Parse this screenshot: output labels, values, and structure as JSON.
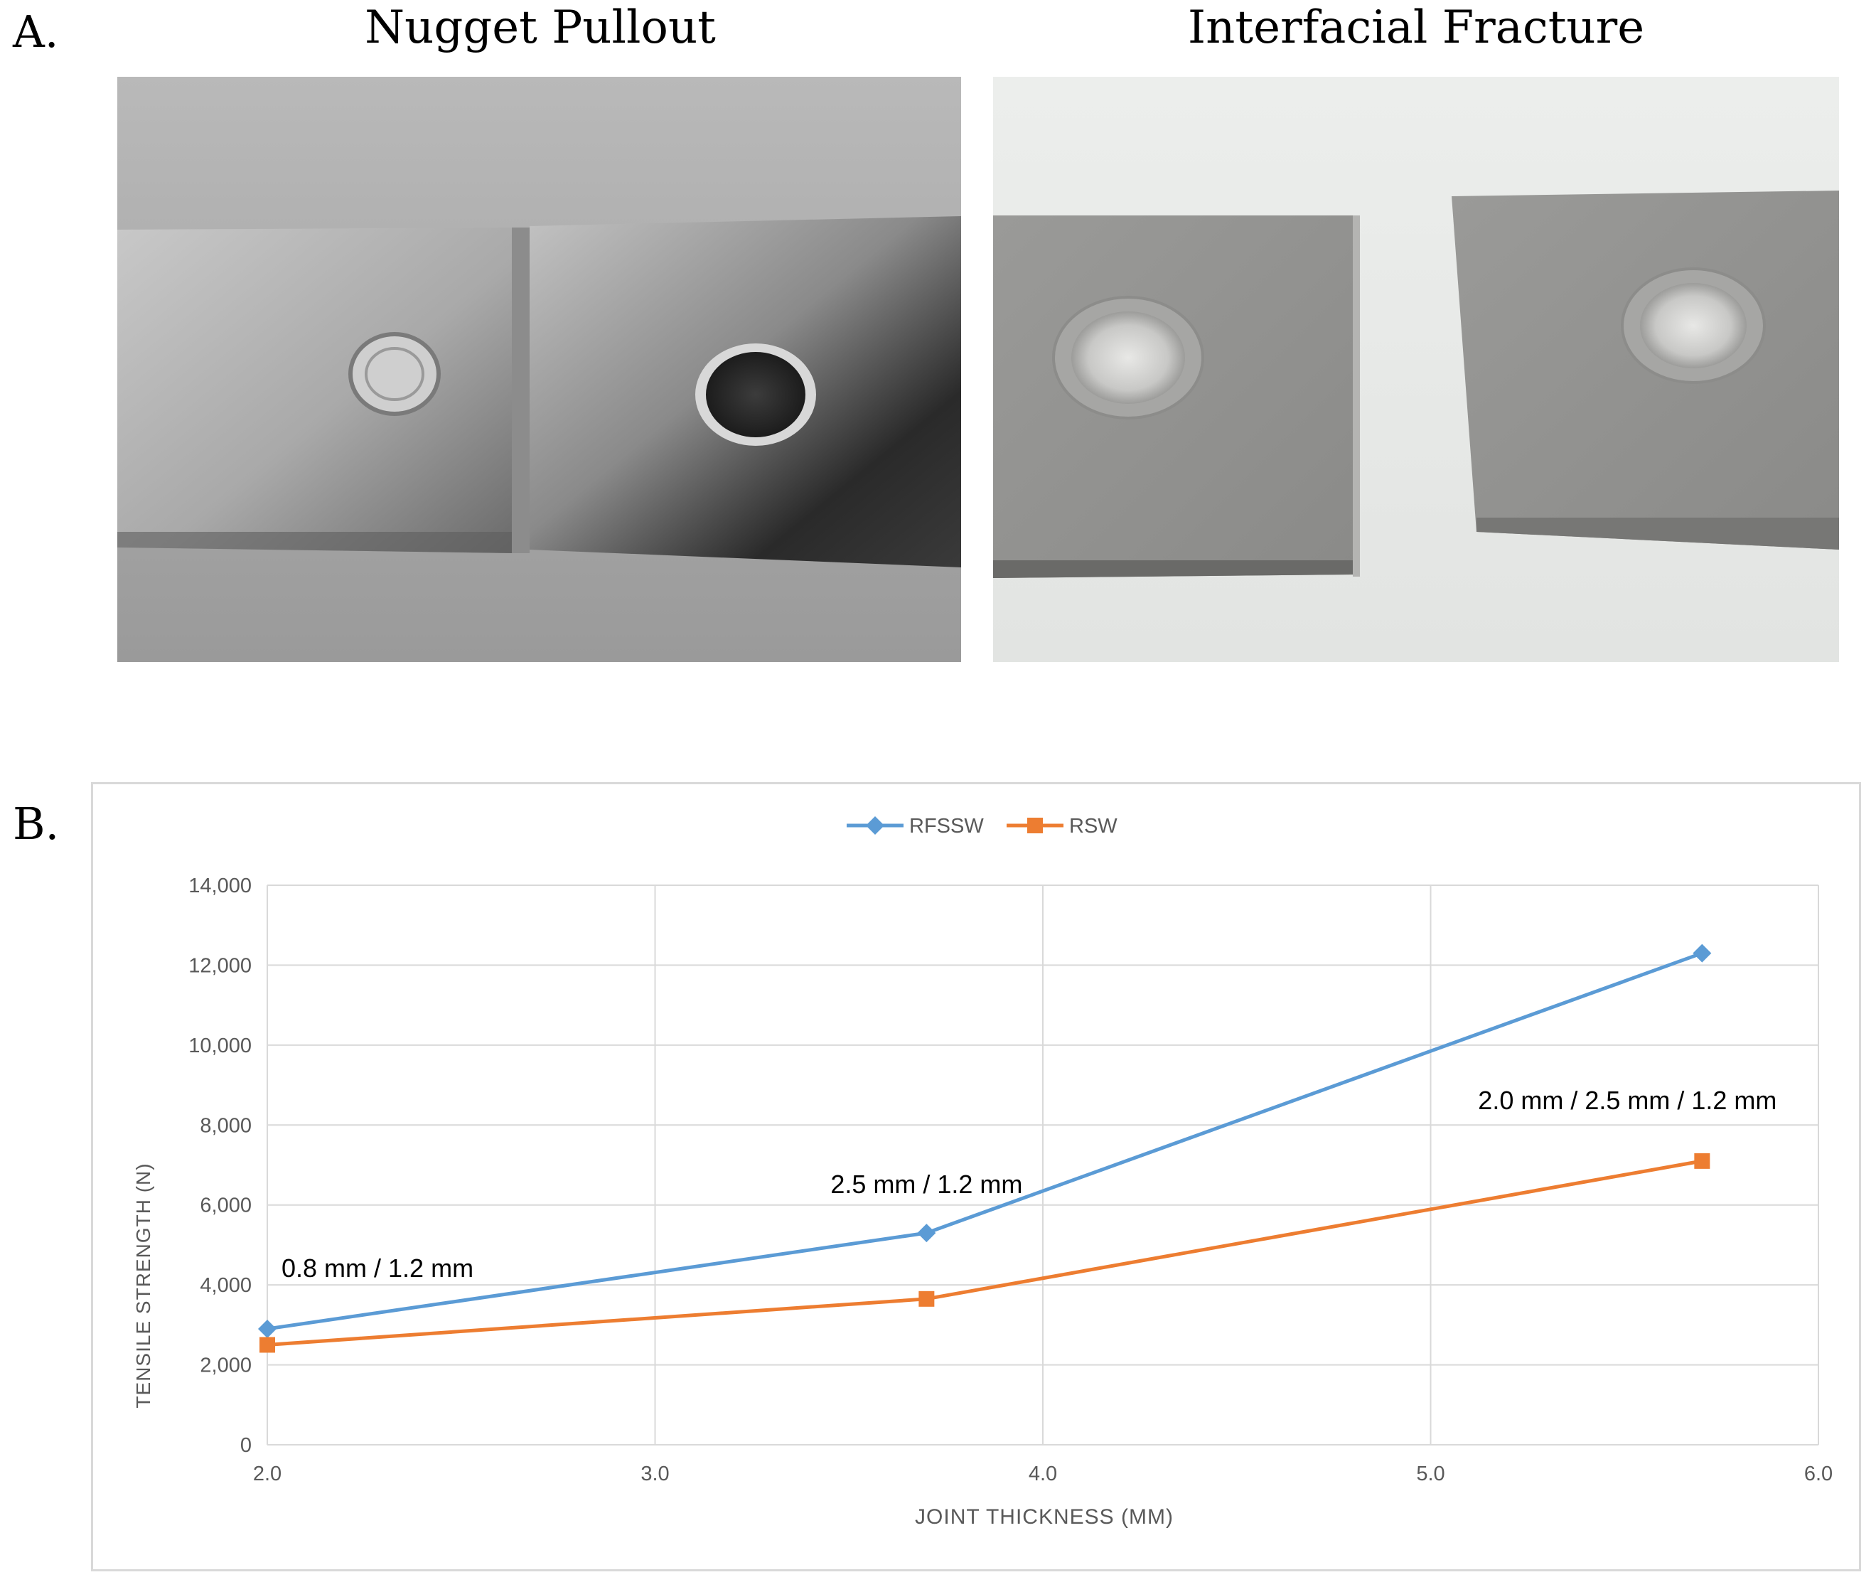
{
  "panel_a": {
    "letter": "A.",
    "left_title": "Nugget Pullout",
    "right_title": "Interfacial Fracture"
  },
  "panel_b": {
    "letter": "B."
  },
  "colors": {
    "rfssw": "#5b9bd5",
    "rsw": "#ed7d31",
    "grid": "#d9d9d9",
    "axis_text": "#595959"
  },
  "chart_data": {
    "type": "line",
    "title": "",
    "xlabel": "JOINT THICKNESS (MM)",
    "ylabel": "TENSILE STRENGTH (N)",
    "xlim": [
      2.0,
      6.0
    ],
    "ylim": [
      0,
      14000
    ],
    "x_ticks": [
      "2.0",
      "3.0",
      "4.0",
      "5.0",
      "6.0"
    ],
    "y_ticks": [
      "0",
      "2,000",
      "4,000",
      "6,000",
      "8,000",
      "10,000",
      "12,000",
      "14,000"
    ],
    "grid": true,
    "legend_position": "top-center",
    "series": [
      {
        "name": "RFSSW",
        "marker": "diamond",
        "x": [
          2.0,
          3.7,
          5.7
        ],
        "values": [
          2900,
          5300,
          12300
        ]
      },
      {
        "name": "RSW",
        "marker": "square",
        "x": [
          2.0,
          3.7,
          5.7
        ],
        "values": [
          2500,
          3650,
          7100
        ]
      }
    ],
    "annotations": [
      {
        "text": "0.8 mm / 1.2 mm",
        "x": 2.0,
        "y": 4200
      },
      {
        "text": "2.5 mm / 1.2 mm",
        "x": 3.7,
        "y": 6300
      },
      {
        "text": "2.0 mm / 2.5 mm / 1.2 mm",
        "x": 5.7,
        "y": 8400
      }
    ]
  }
}
